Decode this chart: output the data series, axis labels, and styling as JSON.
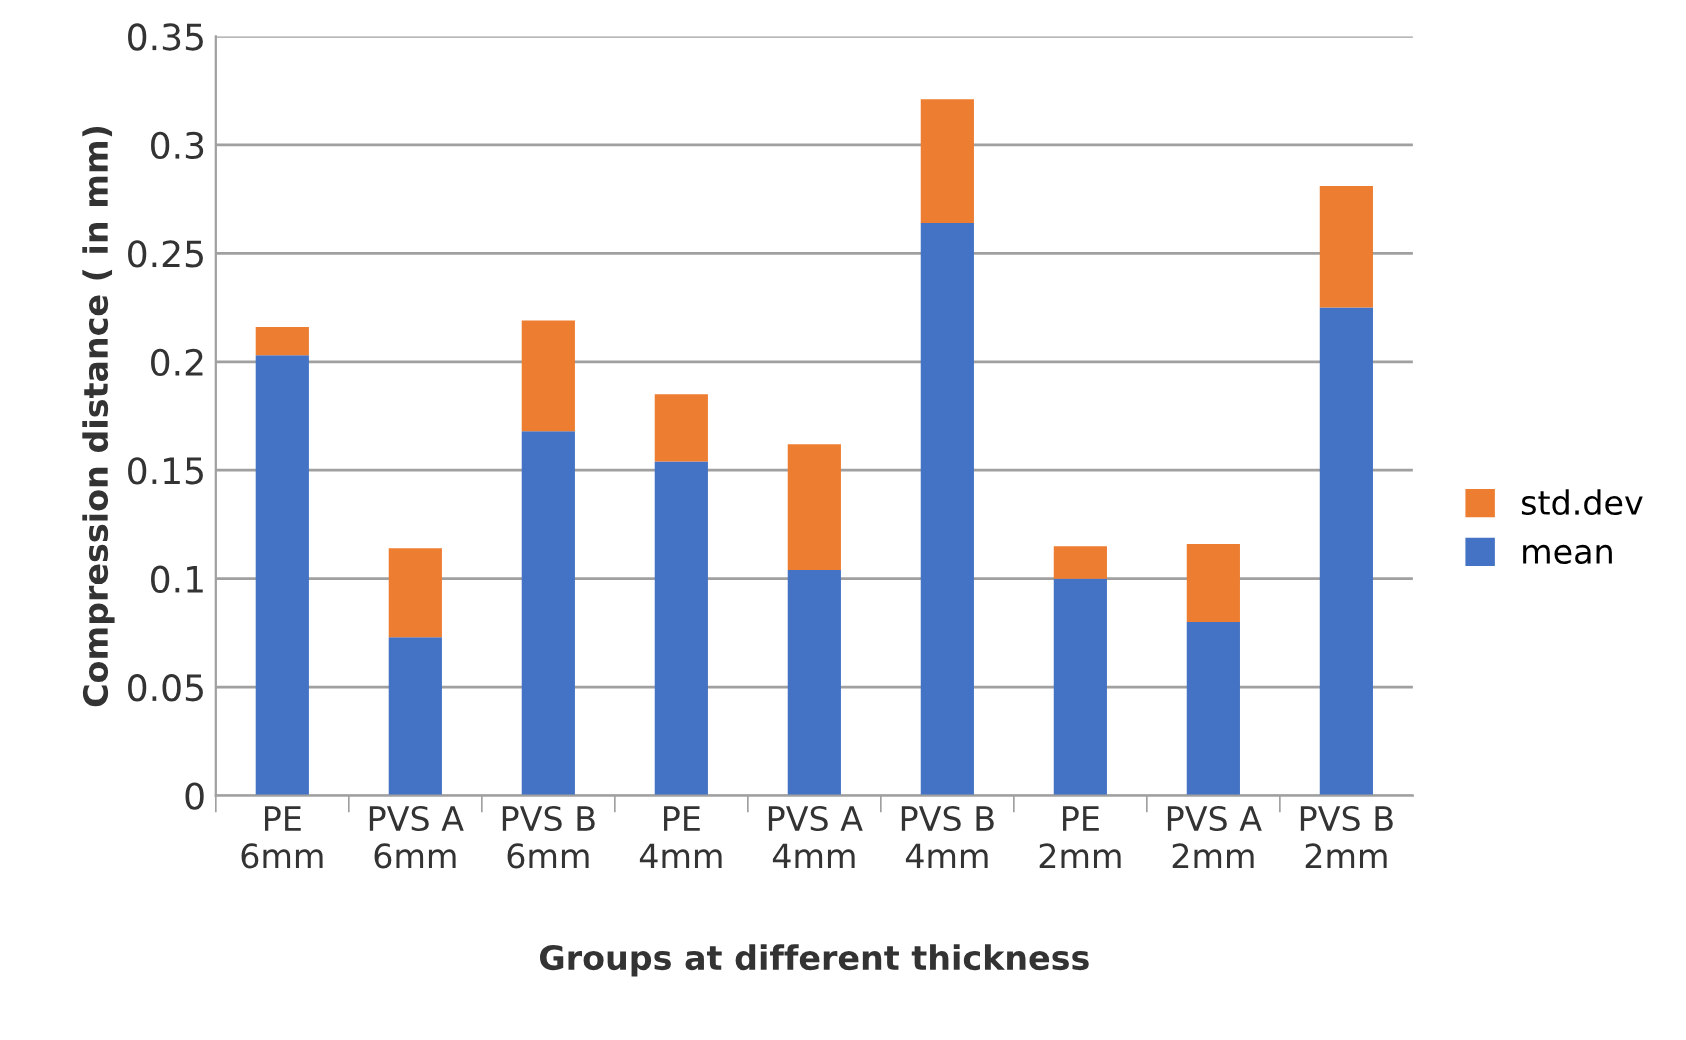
{
  "chart_data": {
    "type": "bar",
    "stacked": true,
    "xlabel": "Groups at different thickness",
    "ylabel": "Compression distance ( in mm)",
    "categories": [
      "PE\n6mm",
      "PVS A\n6mm",
      "PVS B\n6mm",
      "PE\n4mm",
      "PVS A\n4mm",
      "PVS B\n4mm",
      "PE\n2mm",
      "PVS A\n2mm",
      "PVS B\n2mm"
    ],
    "series": [
      {
        "name": "mean",
        "color": "#4472c4",
        "values": [
          0.203,
          0.073,
          0.168,
          0.154,
          0.104,
          0.264,
          0.1,
          0.08,
          0.225
        ]
      },
      {
        "name": "std.dev",
        "color": "#ed7d31",
        "values": [
          0.013,
          0.041,
          0.051,
          0.031,
          0.058,
          0.057,
          0.015,
          0.036,
          0.056
        ]
      }
    ],
    "ylim": [
      0,
      0.35
    ],
    "yticks": [
      0,
      0.05,
      0.1,
      0.15,
      0.2,
      0.25,
      0.3,
      0.35
    ],
    "grid": "y",
    "legend": "right"
  }
}
